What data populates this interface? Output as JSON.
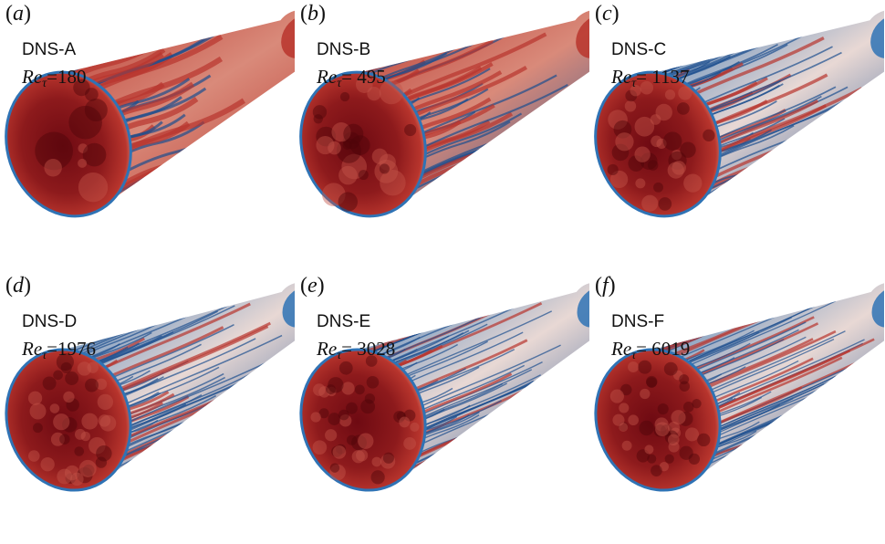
{
  "panels": [
    {
      "letter": "a",
      "case": "DNS-A",
      "re_value": "=180",
      "streak_level": 0.15,
      "eddy_scale": 1.0
    },
    {
      "letter": "b",
      "case": "DNS-B",
      "re_value": "= 495",
      "streak_level": 0.35,
      "eddy_scale": 0.6
    },
    {
      "letter": "c",
      "case": "DNS-C",
      "re_value": "= 1137",
      "streak_level": 0.6,
      "eddy_scale": 0.4
    },
    {
      "letter": "d",
      "case": "DNS-D",
      "re_value": "=1976",
      "streak_level": 0.75,
      "eddy_scale": 0.3
    },
    {
      "letter": "e",
      "case": "DNS-E",
      "re_value": "= 3028",
      "streak_level": 0.8,
      "eddy_scale": 0.25
    },
    {
      "letter": "f",
      "case": "DNS-F",
      "re_value": "= 6019",
      "streak_level": 0.85,
      "eddy_scale": 0.2
    }
  ],
  "re_symbol": "Re",
  "re_subscript": "τ",
  "colors": {
    "dark_red": "#6e0a12",
    "red": "#b8352d",
    "light": "#e8d8d4",
    "blue": "#2f73b5",
    "dark_blue": "#1d4f8f"
  }
}
